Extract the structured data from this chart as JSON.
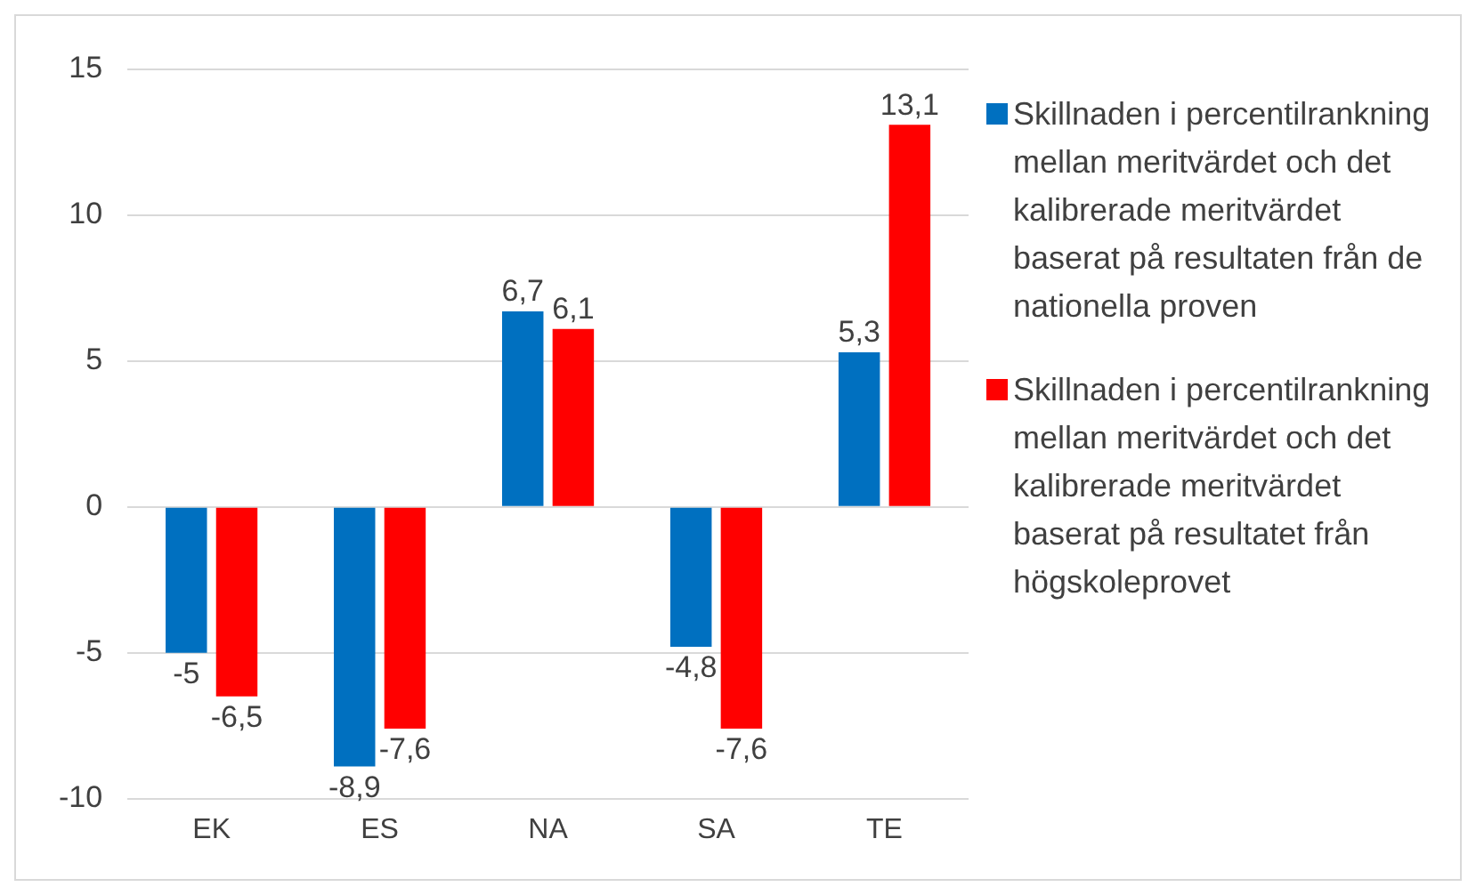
{
  "chart_data": {
    "type": "bar",
    "categories": [
      "EK",
      "ES",
      "NA",
      "SA",
      "TE"
    ],
    "series": [
      {
        "name": "Skillnaden i percentilrankning mellan meritvärdet och det kalibrerade meritvärdet baserat på resultaten från de nationella proven",
        "color": "#0070c0",
        "values": [
          -5,
          -8.9,
          6.7,
          -4.8,
          5.3
        ],
        "value_labels": [
          "-5",
          "-8,9",
          "6,7",
          "-4,8",
          "5,3"
        ]
      },
      {
        "name": "Skillnaden i percentilrankning mellan meritvärdet och det kalibrerade meritvärdet baserat på resultatet från högskoleprovet",
        "color": "#ff0000",
        "values": [
          -6.5,
          -7.6,
          6.1,
          -7.6,
          13.1
        ],
        "value_labels": [
          "-6,5",
          "-7,6",
          "6,1",
          "-7,6",
          "13,1"
        ]
      }
    ],
    "ylim": [
      -10,
      15
    ],
    "yticks": [
      -10,
      -5,
      0,
      5,
      10,
      15
    ],
    "grid": "y",
    "legend": "right"
  }
}
